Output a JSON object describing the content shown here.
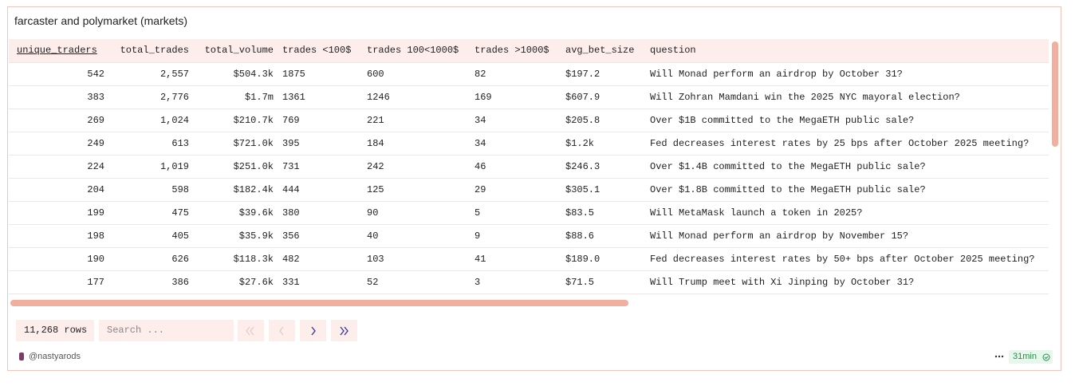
{
  "title": "farcaster and polymarket (markets)",
  "table": {
    "columns": [
      "unique_traders",
      "total_trades",
      "total_volume",
      "trades <100$",
      "trades 100<1000$",
      "trades >1000$",
      "avg_bet_size",
      "question"
    ],
    "rows": [
      [
        "542",
        "2,557",
        "$504.3k",
        "1875",
        "600",
        "82",
        "$197.2",
        "Will Monad perform an airdrop by October 31?"
      ],
      [
        "383",
        "2,776",
        "$1.7m",
        "1361",
        "1246",
        "169",
        "$607.9",
        "Will Zohran Mamdani win the 2025 NYC mayoral election?"
      ],
      [
        "269",
        "1,024",
        "$210.7k",
        "769",
        "221",
        "34",
        "$205.8",
        "Over $1B committed to the MegaETH public sale?"
      ],
      [
        "249",
        "613",
        "$721.0k",
        "395",
        "184",
        "34",
        "$1.2k",
        "Fed decreases interest rates by 25 bps after October 2025 meeting?"
      ],
      [
        "224",
        "1,019",
        "$251.0k",
        "731",
        "242",
        "46",
        "$246.3",
        "Over $1.4B committed to the MegaETH public sale?"
      ],
      [
        "204",
        "598",
        "$182.4k",
        "444",
        "125",
        "29",
        "$305.1",
        "Over $1.8B committed to the MegaETH public sale?"
      ],
      [
        "199",
        "475",
        "$39.6k",
        "380",
        "90",
        "5",
        "$83.5",
        "Will MetaMask launch a token in 2025?"
      ],
      [
        "198",
        "405",
        "$35.9k",
        "356",
        "40",
        "9",
        "$88.6",
        "Will Monad perform an airdrop by November 15?"
      ],
      [
        "190",
        "626",
        "$118.3k",
        "482",
        "103",
        "41",
        "$189.0",
        "Fed decreases interest rates by 50+ bps after October 2025 meeting?"
      ],
      [
        "177",
        "386",
        "$27.6k",
        "331",
        "52",
        "3",
        "$71.5",
        "Will Trump meet with Xi Jinping by October 31?"
      ]
    ]
  },
  "footer": {
    "row_count": "11,268 rows",
    "search_placeholder": "Search ...",
    "author": "@nastyarods",
    "age": "31min"
  }
}
